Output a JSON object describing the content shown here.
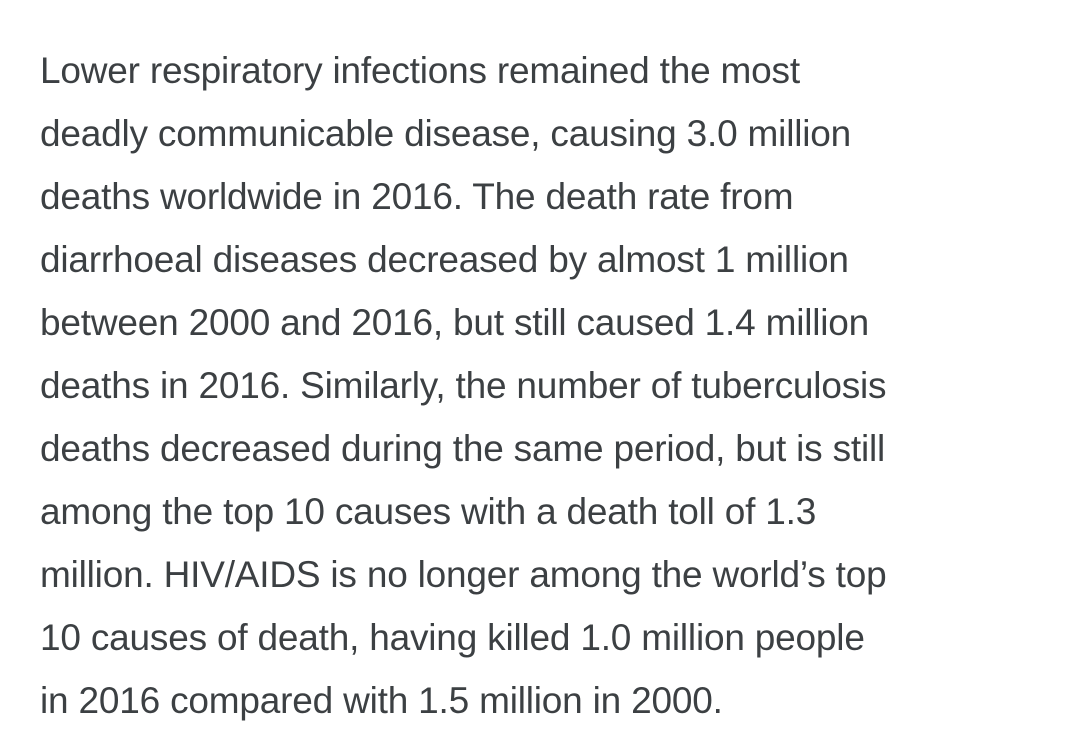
{
  "paragraph": {
    "lines": [
      "Lower respiratory infections remained the most",
      "deadly communicable disease, causing 3.0 million",
      "deaths worldwide in 2016. The death rate from",
      "diarrhoeal diseases decreased by almost 1 million",
      "between 2000 and 2016, but still caused 1.4 million",
      "deaths in 2016. Similarly, the number of tuberculosis",
      "deaths decreased during the same period, but is still",
      "among the top 10 causes with a death toll of 1.3",
      "million. HIV/AIDS is no longer among the world’s top",
      "10 causes of death, having killed 1.0 million people",
      "in 2016 compared with 1.5 million in 2000."
    ]
  },
  "colors": {
    "text": "#3c4043",
    "background": "#ffffff"
  }
}
